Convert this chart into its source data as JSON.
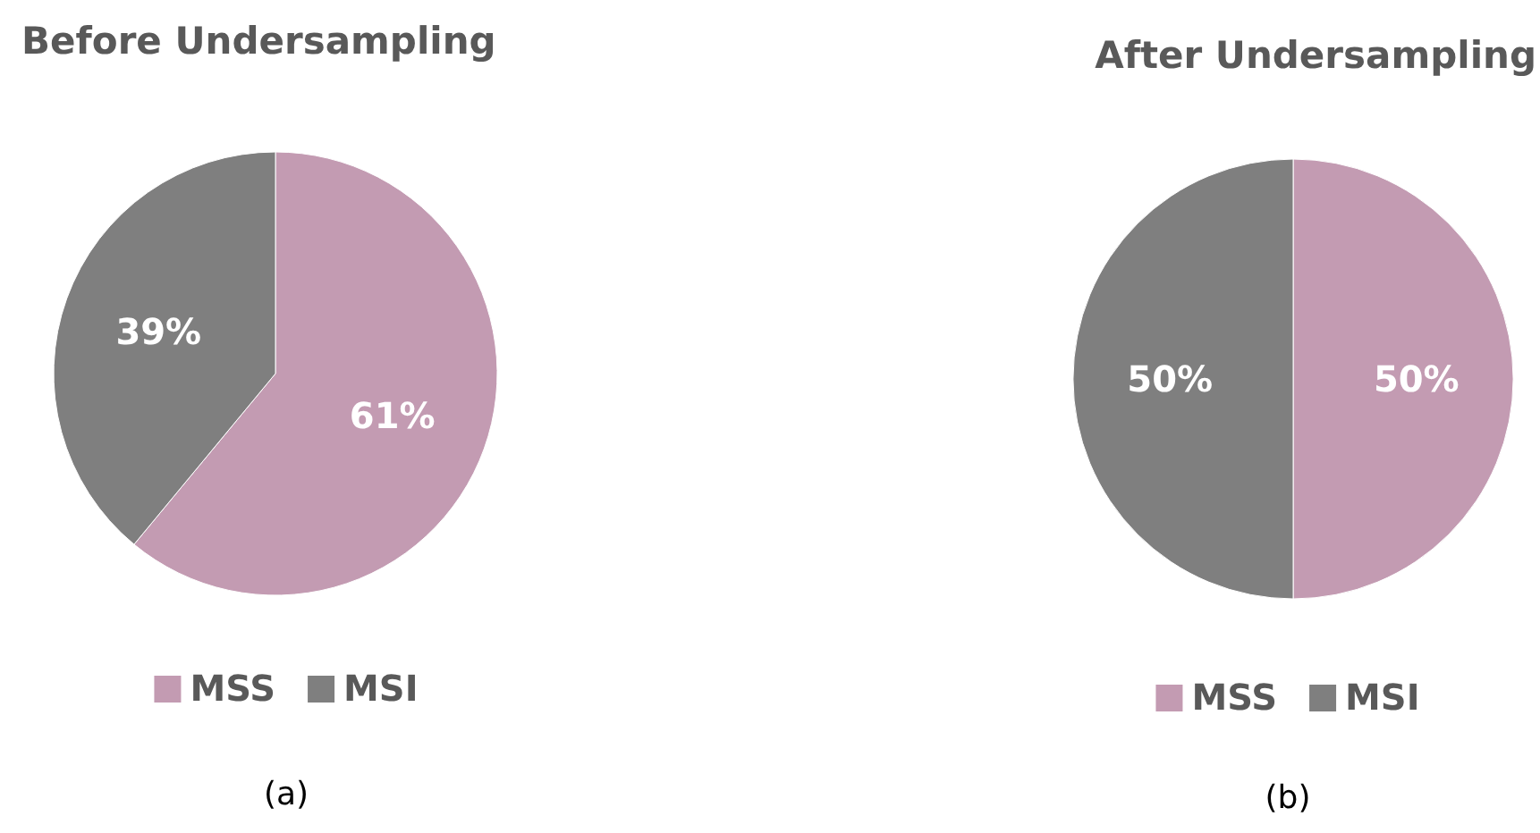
{
  "chart_data": [
    {
      "type": "pie",
      "title": "Before Undersampling",
      "categories": [
        "MSS",
        "MSI"
      ],
      "values": [
        61,
        39
      ],
      "value_labels": [
        "61%",
        "39%"
      ],
      "colors": [
        "#c39bb2",
        "#7f7f7f"
      ],
      "legend": "bottom",
      "annotations": [
        "(a)"
      ]
    },
    {
      "type": "pie",
      "title": "After Undersampling",
      "categories": [
        "MSS",
        "MSI"
      ],
      "values": [
        50,
        50
      ],
      "value_labels": [
        "50%",
        "50%"
      ],
      "colors": [
        "#c39bb2",
        "#7f7f7f"
      ],
      "legend": "bottom",
      "annotations": [
        "(b)"
      ]
    }
  ]
}
